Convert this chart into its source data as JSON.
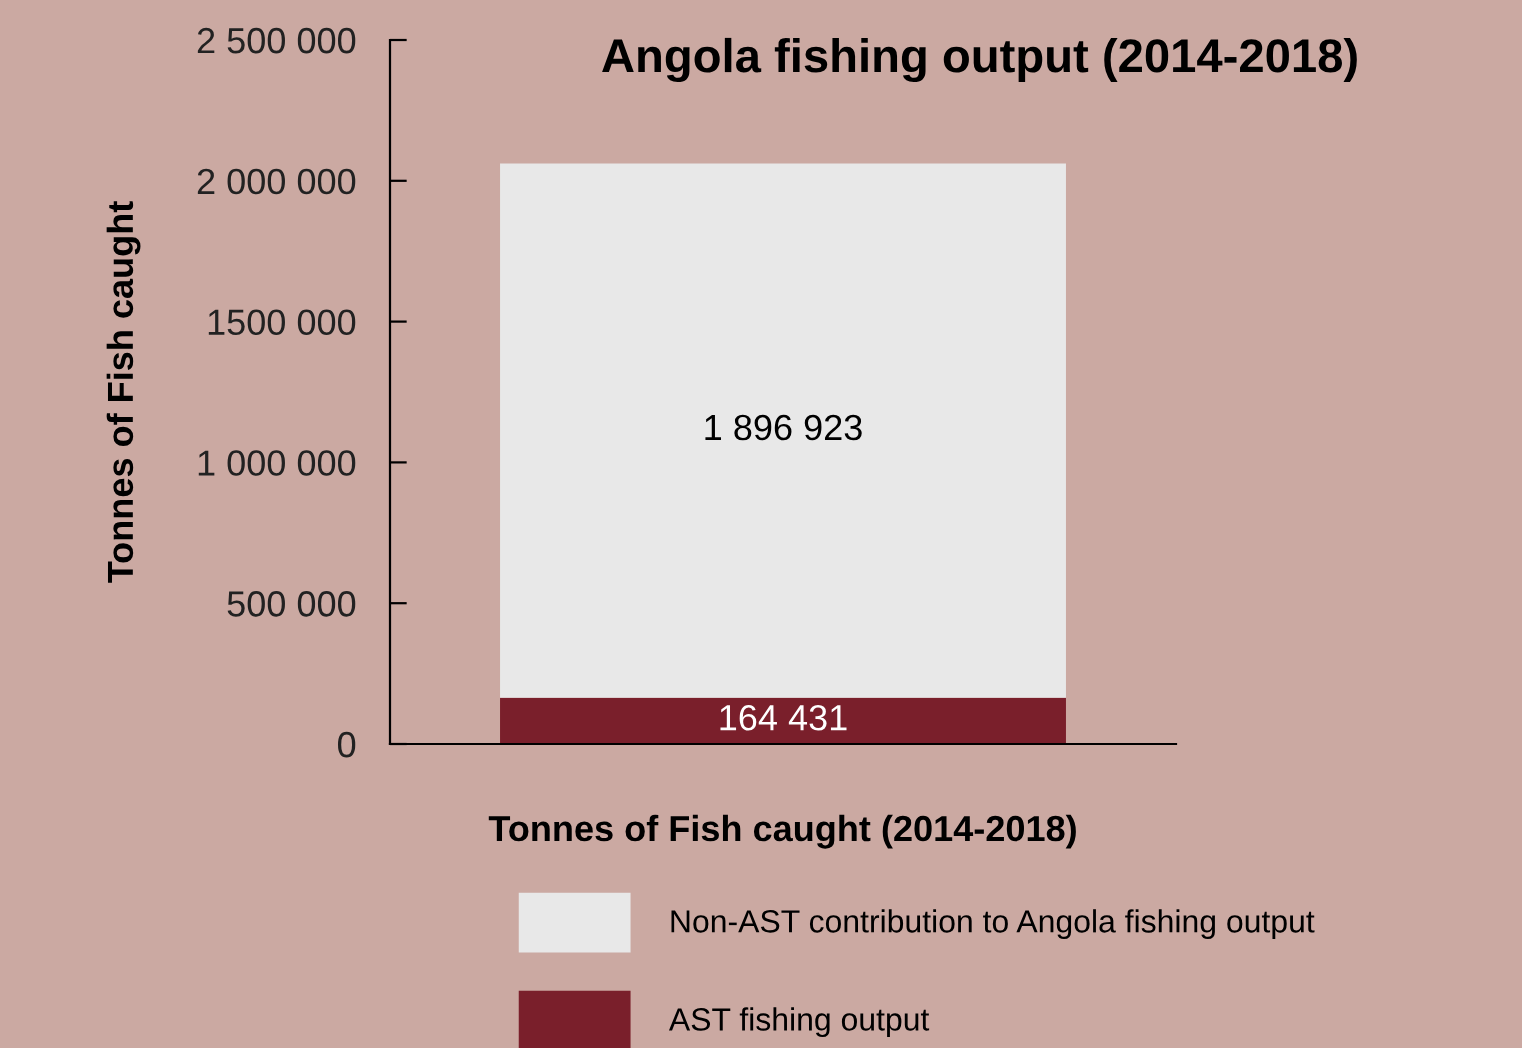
{
  "chart_data": {
    "type": "bar",
    "title": "Angola fishing output (2014-2018)",
    "xlabel": "Tonnes of Fish caught (2014-2018)",
    "ylabel": "Tonnes of Fish caught",
    "categories": [
      null
    ],
    "stacked": true,
    "series": [
      {
        "name": "AST fishing output",
        "color": "#7a1f2b",
        "values": [
          164431
        ],
        "value_labels": [
          "164 431"
        ]
      },
      {
        "name": "Non-AST contribution to Angola fishing output",
        "color": "#e8e8e8",
        "values": [
          1896923
        ],
        "value_labels": [
          "1 896 923"
        ]
      }
    ],
    "ylim": [
      0,
      2500000
    ],
    "yticks": [
      0,
      {
        "value": 500000,
        "label": "500 000"
      },
      {
        "value": 1000000,
        "label": "1 000 000"
      },
      {
        "value": 1500000,
        "label": "1500 000"
      },
      {
        "value": 2000000,
        "label": "2 000 000"
      },
      {
        "value": 2500000,
        "label": "2 500 000"
      }
    ],
    "legend": "bottom",
    "grid": false
  }
}
